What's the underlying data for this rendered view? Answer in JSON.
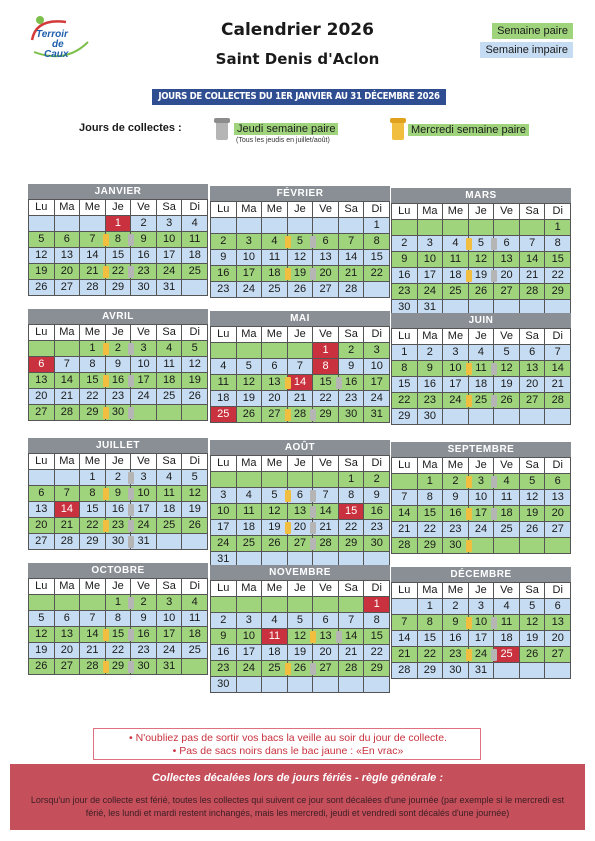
{
  "logo": {
    "line1": "Terroir",
    "line2": "de",
    "line3": "Caux"
  },
  "header": {
    "title": "Calendrier 2026",
    "subtitle": "Saint Denis d'Aclon"
  },
  "week_legend": {
    "even": "Semaine paire",
    "odd": "Semaine impaire"
  },
  "banner": "JOURS DE COLLECTES DU 1ER JANVIER AU 31 DÉCEMBRE 2026",
  "collection_legend": {
    "label": "Jours de collectes :",
    "grey_bin": "Jeudi semaine paire",
    "grey_bin_note": "(Tous les jeudis en juillet/août)",
    "yellow_bin": "Mercredi semaine paire"
  },
  "colors": {
    "even_week": "#9fd37c",
    "odd_week": "#c6dcf2",
    "holiday": "#c8313d",
    "grey_bin": "#b5b5b5",
    "yellow_bin": "#f1be3f"
  },
  "weekdays": [
    "Lu",
    "Ma",
    "Me",
    "Je",
    "Ve",
    "Sa",
    "Di"
  ],
  "months": [
    {
      "name": "JANVIER",
      "offset": 3,
      "days": 31,
      "first_even": false,
      "holidays": [
        1
      ],
      "yellow": [
        7,
        21
      ],
      "grey": [
        8,
        22
      ]
    },
    {
      "name": "FÉVRIER",
      "offset": 6,
      "days": 28,
      "first_even": false,
      "holidays": [],
      "yellow": [
        4,
        18
      ],
      "grey": [
        5,
        19
      ]
    },
    {
      "name": "MARS",
      "offset": 6,
      "days": 31,
      "first_even": true,
      "holidays": [],
      "yellow": [
        4,
        18
      ],
      "grey": [
        5,
        19
      ]
    },
    {
      "name": "AVRIL",
      "offset": 2,
      "days": 30,
      "first_even": true,
      "holidays": [
        6
      ],
      "yellow": [
        1,
        15,
        29
      ],
      "grey": [
        2,
        16,
        30
      ]
    },
    {
      "name": "MAI",
      "offset": 4,
      "days": 31,
      "first_even": true,
      "holidays": [
        1,
        8,
        14,
        25
      ],
      "yellow": [
        13,
        27
      ],
      "grey": [
        15,
        28
      ]
    },
    {
      "name": "JUIN",
      "offset": 0,
      "days": 30,
      "first_even": false,
      "holidays": [],
      "yellow": [
        10,
        24
      ],
      "grey": [
        11,
        25
      ]
    },
    {
      "name": "JUILLET",
      "offset": 2,
      "days": 31,
      "first_even": false,
      "holidays": [
        14
      ],
      "yellow": [
        8,
        22
      ],
      "grey": [
        2,
        9,
        16,
        23,
        30
      ]
    },
    {
      "name": "AOÛT",
      "offset": 5,
      "days": 31,
      "first_even": true,
      "holidays": [
        15
      ],
      "yellow": [
        5,
        19
      ],
      "grey": [
        6,
        13,
        20,
        27
      ]
    },
    {
      "name": "SEPTEMBRE",
      "offset": 1,
      "days": 30,
      "first_even": true,
      "holidays": [],
      "yellow": [
        2,
        16,
        30
      ],
      "grey": [
        3,
        17
      ]
    },
    {
      "name": "OCTOBRE",
      "offset": 3,
      "days": 31,
      "first_even": true,
      "holidays": [],
      "yellow": [
        14,
        28
      ],
      "grey": [
        1,
        15,
        29
      ]
    },
    {
      "name": "NOVEMBRE",
      "offset": 6,
      "days": 30,
      "first_even": true,
      "holidays": [
        1,
        11
      ],
      "yellow": [
        12,
        25
      ],
      "grey": [
        13,
        26
      ]
    },
    {
      "name": "DÉCEMBRE",
      "offset": 1,
      "days": 31,
      "first_even": false,
      "holidays": [
        25
      ],
      "yellow": [
        9,
        23
      ],
      "grey": [
        10,
        24
      ]
    }
  ],
  "notes": [
    "• N'oubliez pas de sortir vos bacs la veille au soir du jour de collecte.",
    "• Pas de sacs noirs dans le bac jaune : «En vrac»"
  ],
  "footer": {
    "title": "Collectes décalées lors de jours fériés - règle générale :",
    "text": "Lorsqu'un jour de collecte est férié, toutes les collectes qui suivent ce jour sont décalées d'une journée (par exemple si le mercredi est férié, les lundi et mardi restent inchangés, mais les mercredi, jeudi et vendredi sont décalés d'une journée)"
  }
}
